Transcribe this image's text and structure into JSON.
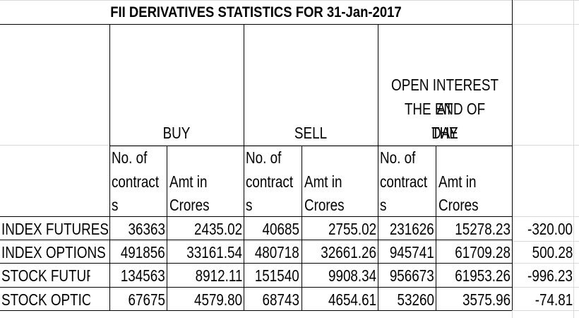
{
  "title": "FII DERIVATIVES STATISTICS FOR 31-Jan-2017",
  "groups": {
    "buy": "BUY",
    "sell": "SELL",
    "oi_line1": "OPEN INTEREST AT",
    "oi_line2": "THE END OF THE",
    "oi_line3": "DAY"
  },
  "subheaders": {
    "contracts_line1": "No. of",
    "contracts_line2": "contract",
    "contracts_line3": "s",
    "amt_line1": "Amt in",
    "amt_line2": "Crores"
  },
  "rows": [
    {
      "label": "INDEX FUTURES",
      "buy_contracts": "36363",
      "buy_amt": "2435.02",
      "sell_contracts": "40685",
      "sell_amt": "2755.02",
      "oi_contracts": "231626",
      "oi_amt": "15278.23",
      "net": "-320.00"
    },
    {
      "label": "INDEX OPTIONS",
      "buy_contracts": "491856",
      "buy_amt": "33161.54",
      "sell_contracts": "480718",
      "sell_amt": "32661.26",
      "oi_contracts": "945741",
      "oi_amt": "61709.28",
      "net": "500.28"
    },
    {
      "label": "STOCK FUTURES",
      "buy_contracts": "134563",
      "buy_amt": "8912.11",
      "sell_contracts": "151540",
      "sell_amt": "9908.34",
      "oi_contracts": "956673",
      "oi_amt": "61953.26",
      "net": "-996.23"
    },
    {
      "label": "STOCK OPTIONS",
      "buy_contracts": "67675",
      "buy_amt": "4579.80",
      "sell_contracts": "68743",
      "sell_amt": "4654.61",
      "oi_contracts": "53260",
      "oi_amt": "3575.96",
      "net": "-74.81"
    }
  ]
}
